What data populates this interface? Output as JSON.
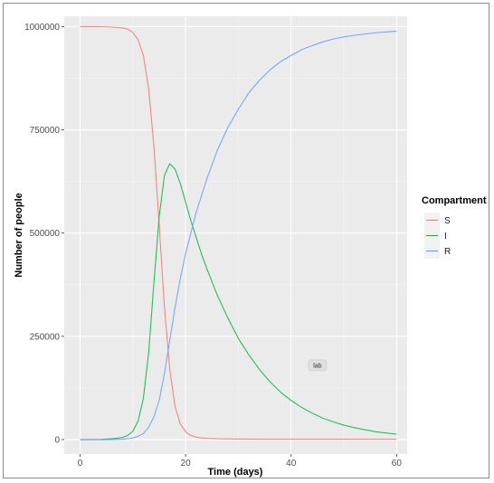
{
  "chart_data": {
    "type": "line",
    "xlabel": "Time (days)",
    "ylabel": "Number of people",
    "xlim": [
      -3,
      62
    ],
    "ylim": [
      -35000,
      1025000
    ],
    "xticks": [
      0,
      20,
      40,
      60
    ],
    "yticks": [
      0,
      250000,
      500000,
      750000,
      1000000
    ],
    "grid": true,
    "legend": {
      "title": "Compartment",
      "position": "right"
    },
    "annotation": "lab",
    "annotation_at": [
      45,
      180000
    ],
    "x": [
      0,
      2,
      4,
      6,
      8,
      9,
      10,
      11,
      12,
      13,
      14,
      15,
      16,
      17,
      18,
      19,
      20,
      21,
      22,
      23,
      24,
      26,
      28,
      30,
      32,
      34,
      36,
      38,
      40,
      42,
      44,
      46,
      48,
      50,
      52,
      54,
      56,
      58,
      60
    ],
    "series": [
      {
        "name": "S",
        "color": "#F8766D",
        "values": [
          1000000,
          1000000,
          999800,
          999000,
          997000,
          994000,
          986000,
          968000,
          930000,
          850000,
          710000,
          520000,
          320000,
          170000,
          80000,
          38000,
          19000,
          10000,
          6000,
          4000,
          3000,
          2000,
          1600,
          1300,
          1200,
          1100,
          1000,
          1000,
          1000,
          1000,
          1000,
          1000,
          1000,
          1000,
          1000,
          1000,
          1000,
          1000,
          1000
        ]
      },
      {
        "name": "I",
        "color": "#00BA38",
        "values": [
          0,
          100,
          500,
          2000,
          5000,
          10000,
          20000,
          45000,
          100000,
          210000,
          380000,
          540000,
          640000,
          668000,
          655000,
          620000,
          575000,
          530000,
          490000,
          450000,
          415000,
          350000,
          295000,
          245000,
          205000,
          170000,
          140000,
          115000,
          95000,
          78000,
          64000,
          52000,
          43000,
          35000,
          29000,
          24000,
          19000,
          16000,
          13000
        ]
      },
      {
        "name": "R",
        "color": "#619CFF",
        "values": [
          0,
          0,
          0,
          200,
          1000,
          2000,
          4000,
          8000,
          15000,
          30000,
          55000,
          95000,
          160000,
          240000,
          320000,
          390000,
          450000,
          500000,
          550000,
          590000,
          630000,
          700000,
          755000,
          800000,
          840000,
          870000,
          895000,
          915000,
          930000,
          944000,
          954000,
          963000,
          970000,
          975000,
          979000,
          982000,
          985000,
          987000,
          989000
        ]
      }
    ]
  }
}
